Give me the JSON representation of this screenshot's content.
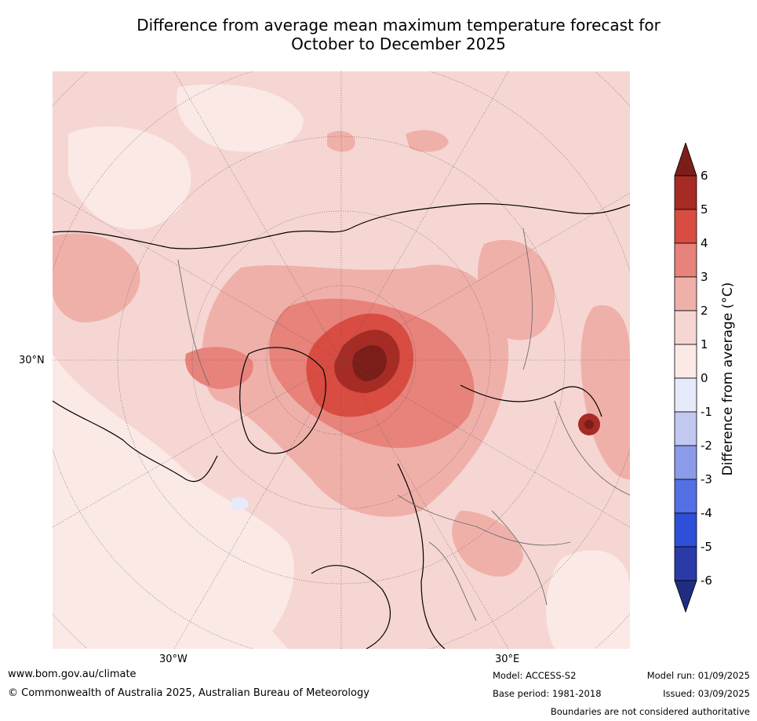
{
  "title_line1": "Difference from average mean maximum temperature forecast for",
  "title_line2": "October to December 2025",
  "lat_label": "30°N",
  "lon_labels": [
    "30°W",
    "30°E"
  ],
  "colorbar": {
    "label": "Difference from average (°C)",
    "ticks": [
      "6",
      "5",
      "4",
      "3",
      "2",
      "1",
      "0",
      "-1",
      "-2",
      "-3",
      "-4",
      "-5",
      "-6"
    ],
    "colors": [
      "#7b1e1a",
      "#a62b25",
      "#d94c41",
      "#e7837b",
      "#f0b0aa",
      "#f6d6d2",
      "#fbe9e6",
      "#e6eafa",
      "#c1c9f1",
      "#8a9bea",
      "#5570e4",
      "#2e4fd8",
      "#2a3ba8",
      "#1f2c80"
    ]
  },
  "footer": {
    "website": "www.bom.gov.au/climate",
    "copyright": "© Commonwealth of Australia 2025, Australian Bureau of Meteorology",
    "model": "Model: ACCESS-S2",
    "base_period": "Base period: 1981-2018",
    "model_run": "Model run: 01/09/2025",
    "issued": "Issued: 03/09/2025",
    "disclaimer": "Boundaries are not considered authoritative"
  }
}
